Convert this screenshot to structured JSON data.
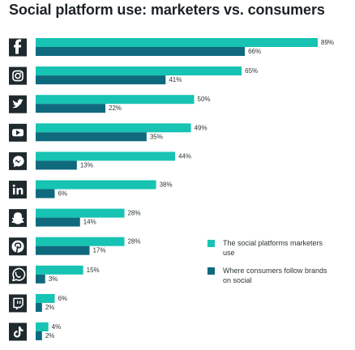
{
  "chart_data": {
    "type": "bar",
    "orientation": "horizontal",
    "title": "Social platform use: marketers vs. consumers",
    "categories": [
      "Facebook",
      "Instagram",
      "Twitter",
      "YouTube",
      "Messenger",
      "LinkedIn",
      "Snapchat",
      "Pinterest",
      "WhatsApp",
      "Twitch",
      "TikTok"
    ],
    "category_icons": [
      "facebook-icon",
      "instagram-icon",
      "twitter-icon",
      "youtube-icon",
      "messenger-icon",
      "linkedin-icon",
      "snapchat-icon",
      "pinterest-icon",
      "whatsapp-icon",
      "twitch-icon",
      "tiktok-icon"
    ],
    "series": [
      {
        "name": "The social platforms marketers use",
        "color": "#17c3b2",
        "values": [
          89,
          65,
          50,
          49,
          44,
          38,
          28,
          28,
          15,
          6,
          4
        ],
        "labels": [
          "89%",
          "65%",
          "50%",
          "49%",
          "44%",
          "38%",
          "28%",
          "28%",
          "15%",
          "6%",
          "4%"
        ]
      },
      {
        "name": "Where consumers follow brands on social",
        "color": "#0f6a7e",
        "values": [
          66,
          41,
          22,
          35,
          13,
          6,
          14,
          17,
          3,
          2,
          2
        ],
        "labels": [
          "66%",
          "41%",
          "22%",
          "35%",
          "13%",
          "6%",
          "14%",
          "17%",
          "3%",
          "2%",
          "2%"
        ]
      }
    ],
    "xlim": [
      0,
      100
    ],
    "grid": false,
    "legend_position": "right"
  },
  "colors": {
    "icon_bg": "#1f2a2e",
    "title": "#1c2326",
    "label": "#2d3538"
  },
  "legend": [
    {
      "label": "The social platforms marketers use"
    },
    {
      "label": "Where consumers follow brands on social"
    }
  ]
}
